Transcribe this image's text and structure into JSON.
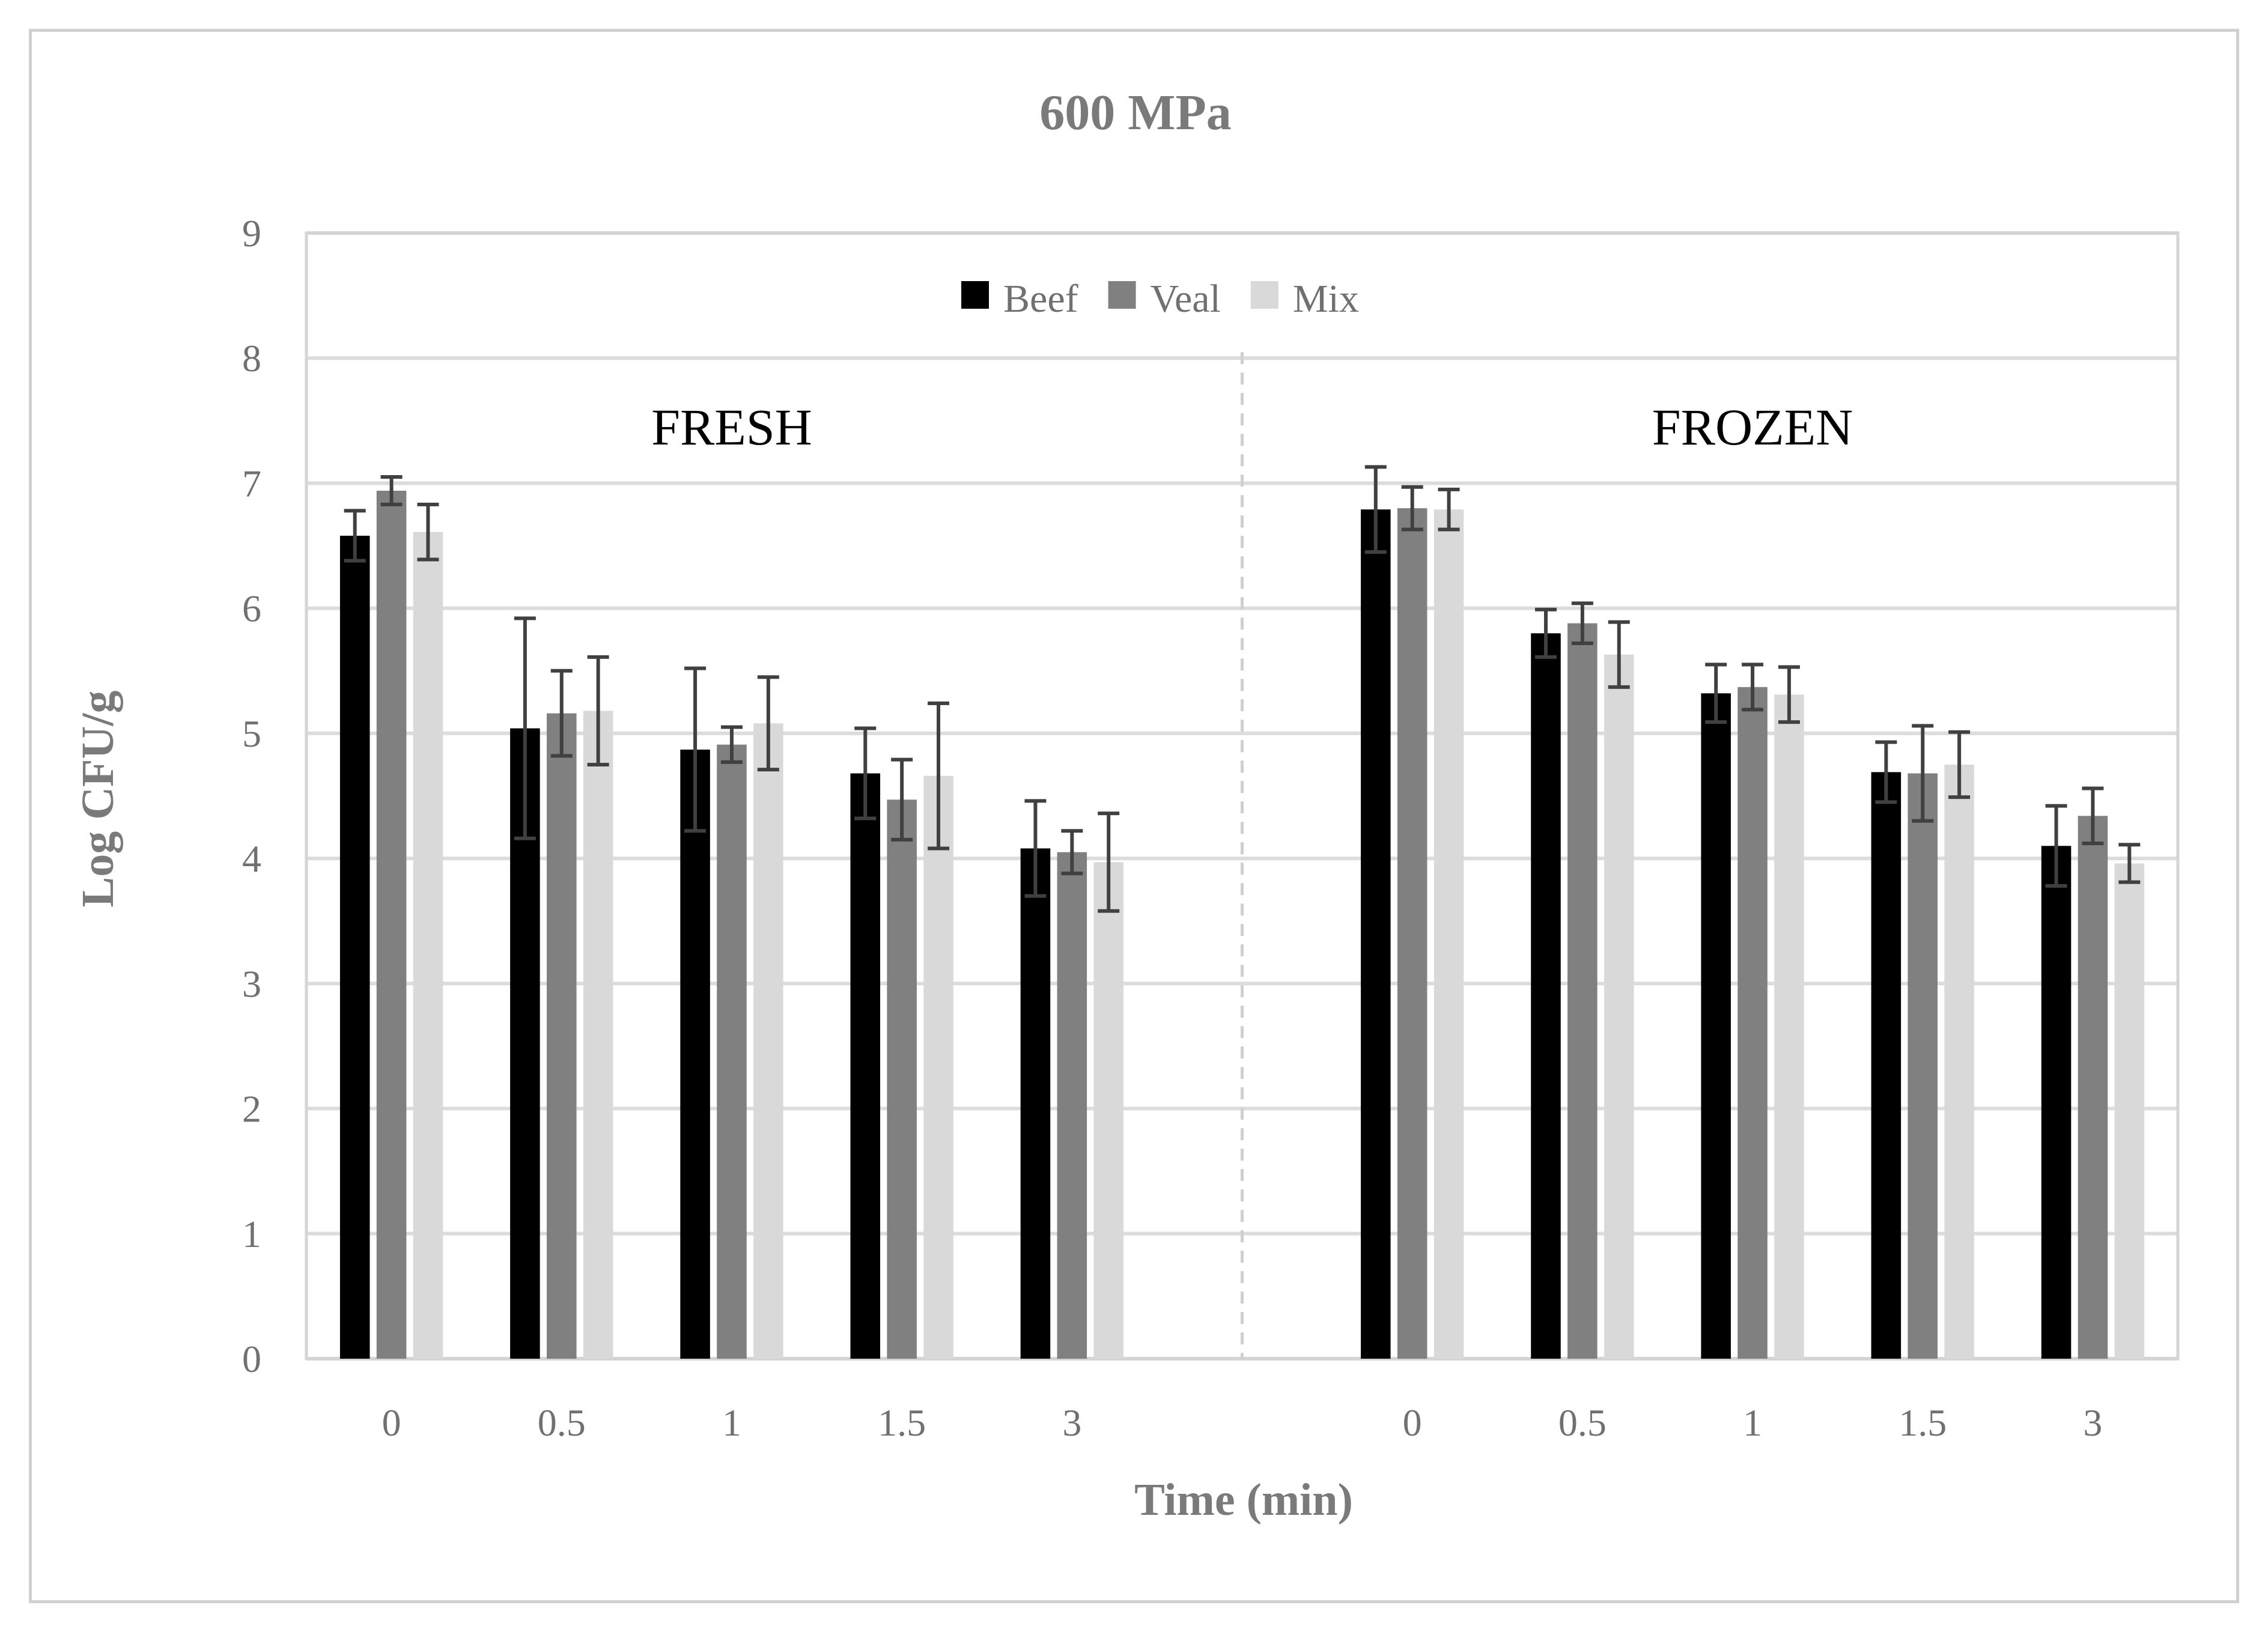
{
  "chart_data": {
    "type": "bar",
    "title": "600 MPa",
    "xlabel": "Time (min)",
    "ylabel": "Log CFU/g",
    "ylim": [
      0,
      9
    ],
    "yticks": [
      "0",
      "1",
      "2",
      "3",
      "4",
      "5",
      "6",
      "7",
      "8",
      "9"
    ],
    "grid": true,
    "legend_position": "top-center",
    "colors": {
      "Beef": "#000000",
      "Veal": "#808080",
      "Mix": "#d9d9d9",
      "errorbar": "#404040"
    },
    "groups": [
      {
        "label": "FRESH",
        "categories": [
          "0",
          "0.5",
          "1",
          "1.5",
          "3"
        ],
        "series": [
          {
            "name": "Beef",
            "values": [
              6.58,
              5.04,
              4.87,
              4.68,
              4.08
            ],
            "errors": [
              0.2,
              0.88,
              0.65,
              0.36,
              0.38
            ]
          },
          {
            "name": "Veal",
            "values": [
              6.94,
              5.16,
              4.91,
              4.47,
              4.05
            ],
            "errors": [
              0.11,
              0.34,
              0.14,
              0.32,
              0.17
            ]
          },
          {
            "name": "Mix",
            "values": [
              6.61,
              5.18,
              5.08,
              4.66,
              3.97
            ],
            "errors": [
              0.22,
              0.43,
              0.37,
              0.58,
              0.39
            ]
          }
        ]
      },
      {
        "label": "FROZEN",
        "categories": [
          "0",
          "0.5",
          "1",
          "1.5",
          "3"
        ],
        "series": [
          {
            "name": "Beef",
            "values": [
              6.79,
              5.8,
              5.32,
              4.69,
              4.1
            ],
            "errors": [
              0.34,
              0.19,
              0.23,
              0.24,
              0.32
            ]
          },
          {
            "name": "Veal",
            "values": [
              6.8,
              5.88,
              5.37,
              4.68,
              4.34
            ],
            "errors": [
              0.17,
              0.16,
              0.18,
              0.38,
              0.22
            ]
          },
          {
            "name": "Mix",
            "values": [
              6.79,
              5.63,
              5.31,
              4.75,
              3.96
            ],
            "errors": [
              0.16,
              0.26,
              0.22,
              0.26,
              0.15
            ]
          }
        ]
      }
    ]
  }
}
